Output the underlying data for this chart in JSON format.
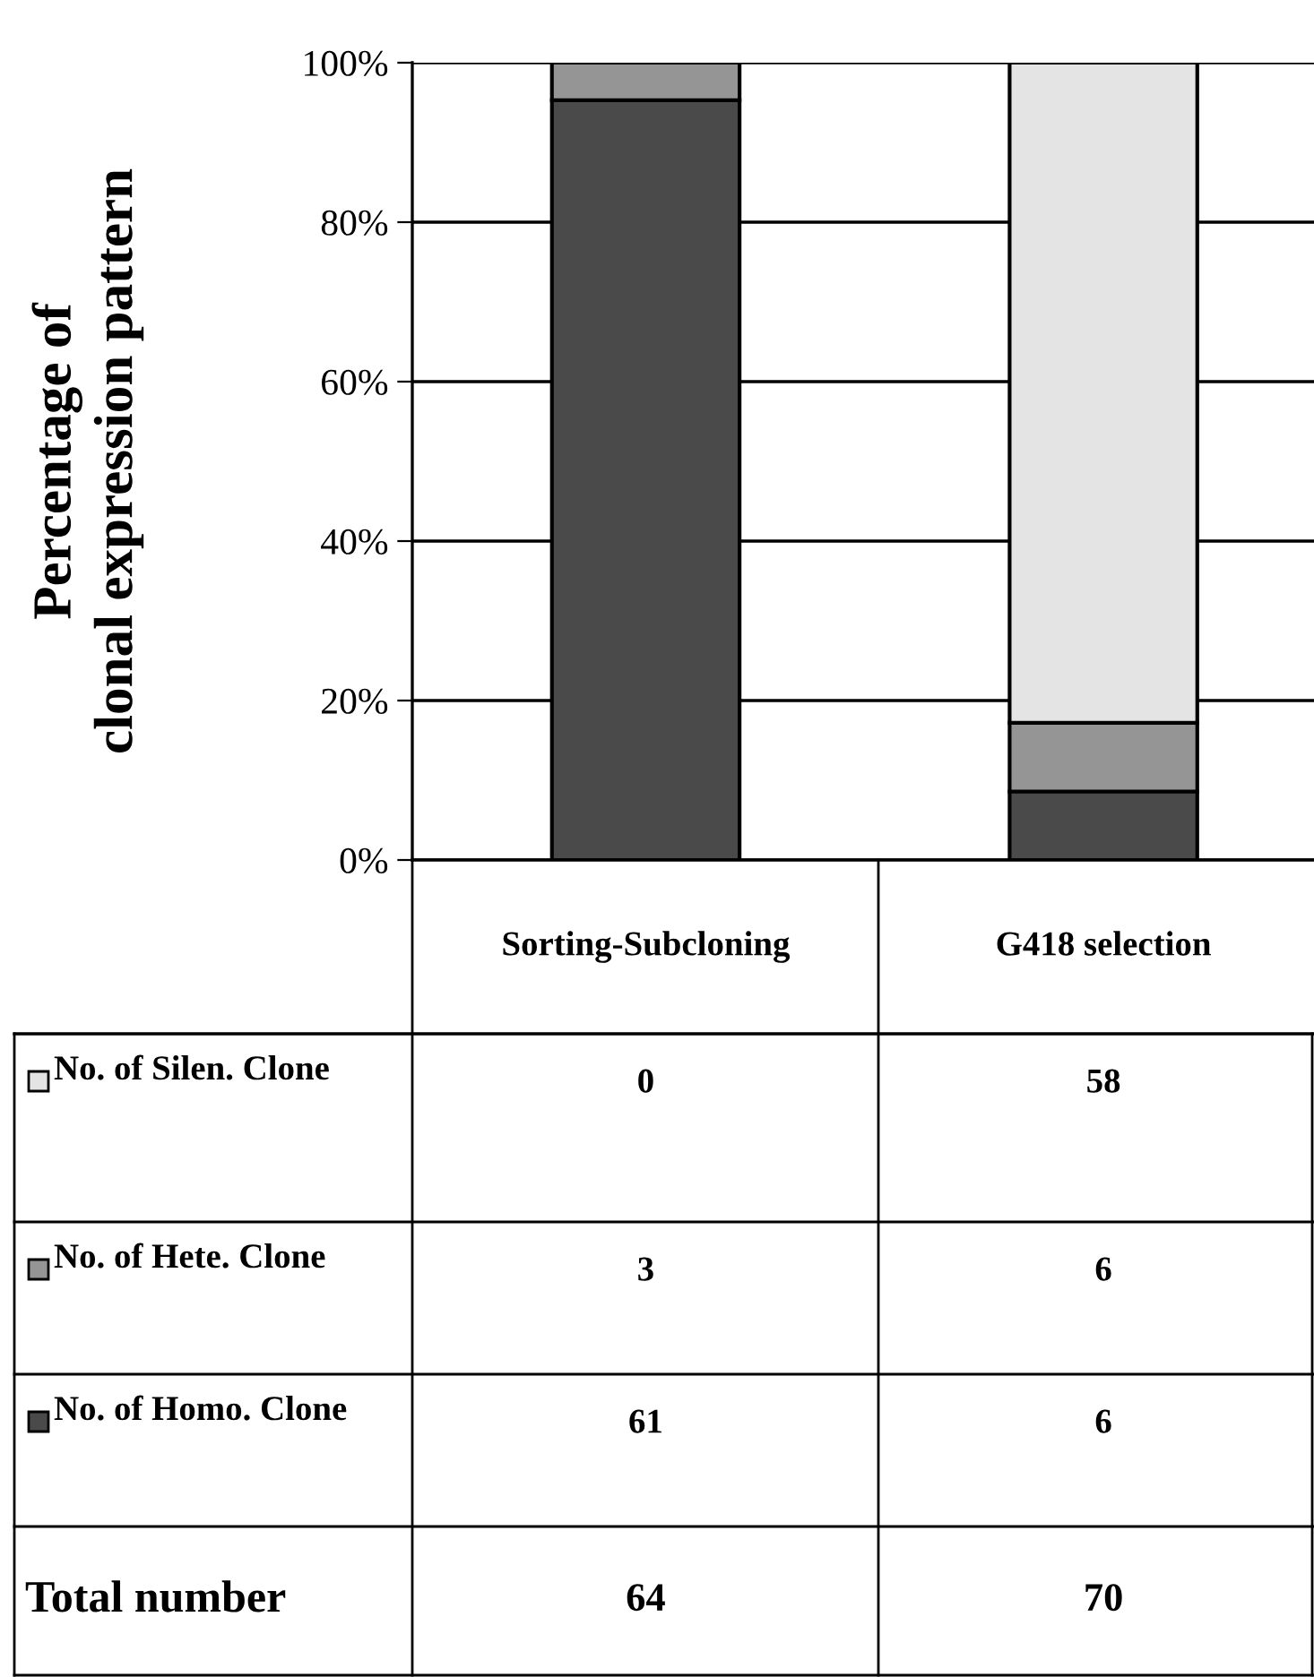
{
  "chart_data": {
    "type": "bar",
    "stacked": true,
    "ylabel": "Percentage of\nclonal expression pattern",
    "categories": [
      "Sorting-Subcloning",
      "G418 selection"
    ],
    "series": [
      {
        "name": "No. of Homo. Clone",
        "color": "#4a4a4a",
        "values": [
          95.3,
          8.6
        ]
      },
      {
        "name": "No. of Hete. Clone",
        "color": "#959595",
        "values": [
          4.7,
          8.6
        ]
      },
      {
        "name": "No. of Silen. Clone",
        "color": "#e4e4e4",
        "values": [
          0,
          82.8
        ]
      }
    ],
    "annotations": [
      "0",
      "58",
      "3",
      "6",
      "61",
      "6",
      "Total number",
      "64",
      "70"
    ],
    "ylim": [
      0,
      100
    ],
    "yticks": [
      {
        "value": 0,
        "label": "0%"
      },
      {
        "value": 20,
        "label": "20%"
      },
      {
        "value": 40,
        "label": "40%"
      },
      {
        "value": 60,
        "label": "60%"
      },
      {
        "value": 80,
        "label": "80%"
      },
      {
        "value": 100,
        "label": "100%"
      }
    ],
    "grid": "y",
    "legend": "bottom"
  }
}
